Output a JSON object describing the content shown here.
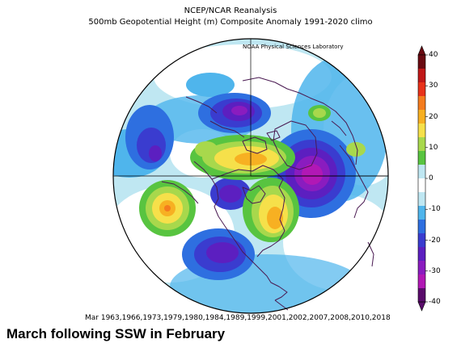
{
  "header": {
    "title": "NCEP/NCAR Reanalysis",
    "subtitle": "500mb Geopotential Height (m) Composite Anomaly 1991-2020 climo",
    "lab_label": "NOAA Physical Sciences Laboratory"
  },
  "colorbar": {
    "ticks": [
      "40",
      "30",
      "20",
      "10",
      "0",
      "-10",
      "-20",
      "-30",
      "-40"
    ],
    "colors": [
      "#6a0a12",
      "#c01818",
      "#e8321a",
      "#f47c1e",
      "#f7b022",
      "#f6e04a",
      "#a8d84c",
      "#58c440",
      "#bfe7f2",
      "#ffffff",
      "#bfe7f2",
      "#4fb5ec",
      "#2e6fe0",
      "#3a3ccf",
      "#5c1fc0",
      "#8a1cbf",
      "#b118b5",
      "#5a0b6b"
    ]
  },
  "map": {
    "projection": "north-polar-stereographic",
    "features": [
      "coastlines",
      "country-borders",
      "equator-circle",
      "meridian-lines"
    ]
  },
  "footer": {
    "years": "Mar 1963,1966,1973,1979,1980,1984,1989,1999,2001,2002,2007,2008,2010,2018",
    "caption": "March following SSW in February"
  }
}
